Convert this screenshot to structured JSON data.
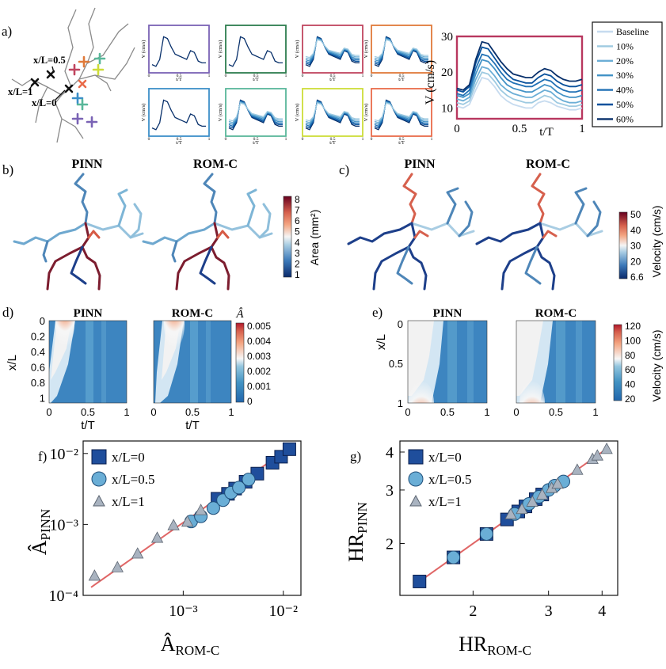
{
  "panels": {
    "a": {
      "label": "a)",
      "locations": [
        "x/L=0.5",
        "x/L=1",
        "x/L=0"
      ],
      "small_axis": {
        "ylabel": "V (cm/s)",
        "xlabel": "t/T",
        "ticks": [
          "0",
          "0.5",
          "1"
        ]
      },
      "frame_colors": [
        "#7a63b5",
        "#2e7d4f",
        "#c0455f",
        "#e07a3a",
        "#3d8fc8",
        "#59b79a",
        "#cddc39",
        "#e96b4a"
      ],
      "zoom_frame_color": "#b8375f"
    },
    "b": {
      "label": "b)",
      "titles": [
        "PINN",
        "ROM-C"
      ],
      "colorbar_label": "Area (mm²)",
      "colorbar_ticks": [
        "8",
        "7",
        "6",
        "5",
        "4",
        "3",
        "2",
        "1"
      ]
    },
    "c": {
      "label": "c)",
      "titles": [
        "PINN",
        "ROM-C"
      ],
      "colorbar_label": "Velocity (cm/s)",
      "colorbar_ticks": [
        "50",
        "40",
        "30",
        "20",
        "6.6"
      ]
    },
    "d": {
      "label": "d)",
      "titles": [
        "PINN",
        "ROM-C"
      ],
      "colorbar_label": "Â",
      "colorbar_ticks": [
        "0.005",
        "0.004",
        "0.003",
        "0.002",
        "0.001",
        "0"
      ]
    },
    "e": {
      "label": "e)",
      "titles": [
        "PINN",
        "ROM-C"
      ],
      "colorbar_label": "Velocity (cm/s)",
      "colorbar_ticks": [
        "120",
        "100",
        "80",
        "60",
        "40",
        "20"
      ]
    },
    "f": {
      "label": "f)",
      "ylabel_main": "Â",
      "ylabel_sub": "PINN",
      "xlabel_main": "Â",
      "xlabel_sub": "ROM-C"
    },
    "g": {
      "label": "g)",
      "ylabel_main": "HR",
      "ylabel_sub": "PINN",
      "xlabel_main": "HR",
      "xlabel_sub": "ROM-C"
    }
  },
  "chart_data": [
    {
      "type": "line",
      "panel": "a-zoom",
      "xlabel": "t/T",
      "ylabel": "V (cm/s)",
      "xlim": [
        0,
        1
      ],
      "ylim": [
        7,
        30
      ],
      "xticks": [
        "0",
        "0.5",
        "1"
      ],
      "yticks": [
        "10",
        "20",
        "30"
      ],
      "x": [
        0,
        0.05,
        0.1,
        0.15,
        0.2,
        0.25,
        0.3,
        0.35,
        0.4,
        0.45,
        0.5,
        0.55,
        0.6,
        0.65,
        0.7,
        0.75,
        0.8,
        0.85,
        0.9,
        0.95,
        1
      ],
      "series": [
        {
          "name": "Baseline",
          "color": "#c6dbef",
          "values": [
            10.5,
            10,
            11,
            15,
            18.5,
            18,
            16,
            13.5,
            12,
            11,
            10.5,
            10,
            10,
            11.5,
            12,
            11.5,
            10.5,
            10,
            9.5,
            9.5,
            10
          ]
        },
        {
          "name": "10%",
          "color": "#9ecae1",
          "values": [
            11.5,
            11,
            12,
            16.5,
            20,
            19.5,
            17.5,
            15,
            13.5,
            12.5,
            12,
            11.5,
            11.5,
            12.5,
            13.5,
            13,
            11.5,
            11,
            10.5,
            10.5,
            11
          ]
        },
        {
          "name": "20%",
          "color": "#6baed6",
          "values": [
            12.5,
            12,
            13,
            18,
            21.5,
            21,
            19,
            16.5,
            15,
            14,
            13.5,
            13,
            13,
            14,
            15,
            14.5,
            13,
            12,
            11.5,
            11.5,
            12
          ]
        },
        {
          "name": "30%",
          "color": "#4292c6",
          "values": [
            13.5,
            13,
            14,
            19.5,
            23.5,
            23,
            21,
            18.5,
            16.5,
            15.5,
            15,
            14.5,
            14.5,
            15.5,
            16.5,
            16,
            14.5,
            13.5,
            13,
            13,
            13.5
          ]
        },
        {
          "name": "40%",
          "color": "#2171b5",
          "values": [
            14,
            13.5,
            15,
            21,
            25,
            24.5,
            22.5,
            20,
            18,
            17,
            16.5,
            16,
            16,
            17,
            18,
            17.5,
            16,
            15,
            14.5,
            14.5,
            15
          ]
        },
        {
          "name": "50%",
          "color": "#08519c",
          "values": [
            15,
            14.5,
            16,
            22.5,
            27,
            26.5,
            24,
            21.5,
            19.5,
            18,
            17.5,
            17,
            17,
            18.5,
            19.5,
            19,
            17.5,
            16.5,
            16,
            16,
            16.5
          ]
        },
        {
          "name": "60%",
          "color": "#08306b",
          "values": [
            15.5,
            15,
            16.5,
            23.5,
            28.5,
            28,
            25.5,
            23,
            21,
            19.5,
            19,
            18.5,
            18.5,
            20,
            21,
            20.5,
            19,
            18,
            17.5,
            17.5,
            18
          ]
        }
      ]
    },
    {
      "type": "scatter",
      "panel": "f",
      "xscale": "log",
      "yscale": "log",
      "xlim": [
        0.0001,
        0.015
      ],
      "ylim": [
        0.0001,
        0.015
      ],
      "xticks": [
        "10⁻³",
        "10⁻²"
      ],
      "yticks": [
        "10⁻²",
        "10⁻³",
        "10⁻⁴"
      ],
      "legend_position": "top-left",
      "fit_line": {
        "color": "#e06666",
        "x": [
          0.00012,
          0.013
        ],
        "y": [
          0.00013,
          0.0135
        ]
      },
      "series": [
        {
          "name": "x/L=0",
          "marker": "square",
          "color": "#1f4e9c",
          "x": [
            0.0022,
            0.0028,
            0.0033,
            0.0042,
            0.0055,
            0.0078,
            0.0095,
            0.0115
          ],
          "y": [
            0.0023,
            0.0027,
            0.0032,
            0.004,
            0.0052,
            0.0074,
            0.009,
            0.0115
          ]
        },
        {
          "name": "x/L=0.5",
          "marker": "circle",
          "color": "#6aaed6",
          "x": [
            0.0012,
            0.0015,
            0.002,
            0.0025,
            0.003,
            0.0036,
            0.0045
          ],
          "y": [
            0.0011,
            0.0013,
            0.0017,
            0.0022,
            0.0028,
            0.0033,
            0.0043
          ]
        },
        {
          "name": "x/L=1",
          "marker": "triangle",
          "color": "#a9b3c0",
          "x": [
            0.00013,
            0.00022,
            0.00035,
            0.00055,
            0.0008,
            0.0011,
            0.0015
          ],
          "y": [
            0.00019,
            0.00025,
            0.00039,
            0.00065,
            0.00098,
            0.0011,
            0.0016
          ]
        }
      ]
    },
    {
      "type": "scatter",
      "panel": "g",
      "xscale": "log",
      "yscale": "log",
      "xlim": [
        1.35,
        4.35
      ],
      "ylim": [
        1.35,
        4.35
      ],
      "xticks": [
        "2",
        "3",
        "4"
      ],
      "yticks": [
        "4",
        "3",
        "2"
      ],
      "legend_position": "top-left",
      "fit_line": {
        "color": "#e06666",
        "x": [
          1.45,
          4.15
        ],
        "y": [
          1.45,
          4.15
        ]
      },
      "series": [
        {
          "name": "x/L=0",
          "marker": "square",
          "color": "#1f4e9c",
          "x": [
            1.5,
            1.8,
            2.15,
            2.4,
            2.55,
            2.65,
            2.8,
            2.9
          ],
          "y": [
            1.5,
            1.8,
            2.15,
            2.4,
            2.55,
            2.65,
            2.8,
            2.9
          ]
        },
        {
          "name": "x/L=0.5",
          "marker": "circle",
          "color": "#6aaed6",
          "x": [
            1.8,
            2.15,
            2.5,
            2.7,
            2.85,
            3.0,
            3.1,
            3.25
          ],
          "y": [
            1.8,
            2.15,
            2.5,
            2.7,
            2.85,
            3.0,
            3.1,
            3.2
          ]
        },
        {
          "name": "x/L=1",
          "marker": "triangle",
          "color": "#a9b3c0",
          "x": [
            2.45,
            2.6,
            2.75,
            2.9,
            3.05,
            3.15,
            3.5,
            3.8,
            3.9,
            4.1
          ],
          "y": [
            2.5,
            2.6,
            2.75,
            2.9,
            3.05,
            3.15,
            3.5,
            3.8,
            3.9,
            4.1
          ]
        }
      ]
    }
  ]
}
